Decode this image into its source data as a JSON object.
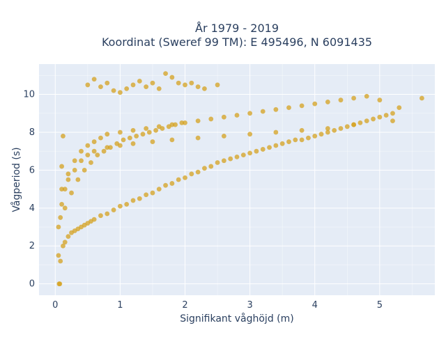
{
  "chart_data": {
    "type": "scatter",
    "title_line1": "År 1979 - 2019",
    "title_line2": "Koordinat (Sweref 99 TM): E 495496, N 6091435",
    "xlabel": "Signifikant våghöjd (m)",
    "ylabel": "Vågperiod (s)",
    "xlim": [
      -0.25,
      5.85
    ],
    "ylim": [
      -0.6,
      11.6
    ],
    "x_ticks": [
      0,
      1,
      2,
      3,
      4,
      5
    ],
    "y_ticks": [
      0,
      2,
      4,
      6,
      8,
      10
    ],
    "grid": true,
    "legend": "none",
    "colors": {
      "marker": "#d4a21f",
      "plot_bg": "#e5ecf6",
      "grid": "#ffffff",
      "text": "#2a3f5f"
    },
    "series": [
      {
        "x": [
          0.05,
          0.08,
          0.12,
          0.15,
          0.2,
          0.25,
          0.3,
          0.35,
          0.4,
          0.45,
          0.5,
          0.55,
          0.6,
          0.7,
          0.8,
          0.9,
          1.0,
          1.1,
          1.2,
          1.3,
          1.4,
          1.5,
          1.6,
          1.7,
          1.8,
          1.9,
          2.0,
          2.1,
          2.2,
          2.3,
          2.4,
          2.5,
          2.6,
          2.7,
          2.8,
          2.9,
          3.0,
          3.1,
          3.2,
          3.3,
          3.4,
          3.5,
          3.6,
          3.7,
          3.8,
          3.9,
          4.0,
          4.1,
          4.2,
          4.3,
          4.4,
          4.5,
          4.6,
          4.7,
          4.8,
          4.9,
          5.0,
          5.1,
          5.2,
          5.3,
          5.65,
          0.06,
          0.07,
          0.1,
          0.12,
          0.5,
          0.6,
          0.7,
          0.8,
          0.9,
          1.0,
          1.1,
          1.2,
          1.3,
          1.4,
          1.5,
          1.6,
          1.7,
          1.8,
          1.9,
          2.0,
          2.1,
          2.2,
          2.3,
          2.5,
          0.1,
          0.2,
          0.3,
          0.4,
          0.5,
          0.6,
          0.7,
          0.8,
          1.0,
          1.2,
          1.4,
          1.6,
          1.8,
          2.0,
          2.2,
          2.4,
          2.6,
          2.8,
          3.0,
          3.2,
          3.4,
          3.6,
          3.8,
          4.0,
          4.2,
          4.4,
          4.6,
          4.8,
          5.0,
          0.15,
          0.25,
          0.35,
          0.45,
          0.55,
          0.65,
          0.75,
          0.85,
          0.95,
          1.05,
          1.15,
          1.25,
          1.35,
          1.45,
          1.55,
          1.65,
          1.75,
          1.85,
          1.95,
          0.05,
          0.08,
          0.1,
          0.15,
          0.2,
          0.3,
          0.4,
          0.5,
          0.6,
          0.8,
          1.0,
          1.2,
          1.5,
          1.8,
          2.2,
          2.6,
          3.0,
          3.4,
          3.8,
          4.2,
          4.6,
          5.2
        ],
        "y": [
          1.5,
          1.2,
          2.0,
          2.2,
          2.5,
          2.7,
          2.8,
          2.9,
          3.0,
          3.1,
          3.2,
          3.3,
          3.4,
          3.6,
          3.7,
          3.9,
          4.1,
          4.2,
          4.4,
          4.5,
          4.7,
          4.8,
          5.0,
          5.2,
          5.3,
          5.5,
          5.6,
          5.8,
          5.9,
          6.1,
          6.2,
          6.4,
          6.5,
          6.6,
          6.7,
          6.8,
          6.9,
          7.0,
          7.1,
          7.2,
          7.3,
          7.4,
          7.5,
          7.6,
          7.6,
          7.7,
          7.8,
          7.9,
          8.0,
          8.1,
          8.2,
          8.3,
          8.4,
          8.5,
          8.6,
          8.7,
          8.8,
          8.9,
          9.0,
          9.3,
          9.8,
          0.0,
          0.0,
          6.2,
          7.8,
          10.5,
          10.8,
          10.4,
          10.6,
          10.2,
          10.1,
          10.3,
          10.5,
          10.7,
          10.4,
          10.6,
          10.3,
          11.1,
          10.9,
          10.6,
          10.5,
          10.6,
          10.4,
          10.3,
          10.5,
          5.0,
          5.8,
          6.5,
          7.0,
          7.3,
          7.5,
          7.7,
          7.9,
          8.0,
          8.1,
          8.2,
          8.3,
          8.4,
          8.5,
          8.6,
          8.7,
          8.8,
          8.9,
          9.0,
          9.1,
          9.2,
          9.3,
          9.4,
          9.5,
          9.6,
          9.7,
          9.8,
          9.9,
          9.7,
          4.0,
          4.8,
          5.5,
          6.0,
          6.4,
          6.8,
          7.0,
          7.2,
          7.4,
          7.6,
          7.7,
          7.8,
          7.9,
          8.0,
          8.1,
          8.2,
          8.3,
          8.4,
          8.5,
          3.0,
          3.5,
          4.2,
          5.0,
          5.5,
          6.0,
          6.5,
          6.8,
          7.0,
          7.2,
          7.3,
          7.4,
          7.5,
          7.6,
          7.7,
          7.8,
          7.9,
          8.0,
          8.1,
          8.2,
          8.4,
          8.6
        ]
      }
    ]
  }
}
